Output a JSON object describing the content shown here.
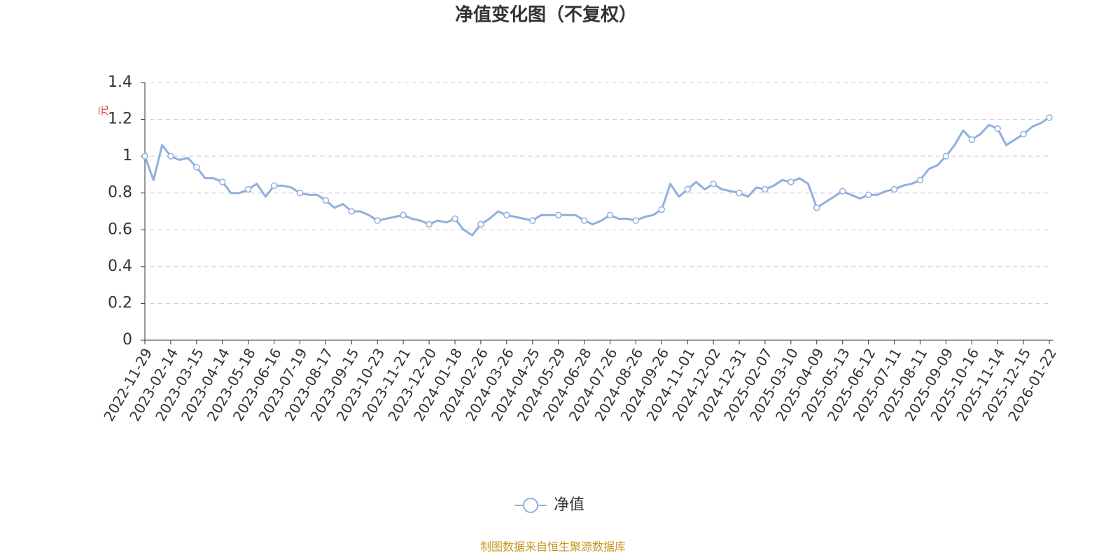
{
  "chart_data": {
    "type": "line",
    "title": "净值变化图（不复权）",
    "y_label": "元",
    "categories": [
      "2022-11-29",
      null,
      null,
      "2023-02-14",
      null,
      null,
      "2023-03-15",
      null,
      null,
      "2023-04-14",
      null,
      null,
      "2023-05-18",
      null,
      null,
      "2023-06-16",
      null,
      null,
      "2023-07-19",
      null,
      null,
      "2023-08-17",
      null,
      null,
      "2023-09-15",
      null,
      null,
      "2023-10-23",
      null,
      null,
      "2023-11-21",
      null,
      null,
      "2023-12-20",
      null,
      null,
      "2024-01-18",
      null,
      null,
      "2024-02-26",
      null,
      null,
      "2024-03-26",
      null,
      null,
      "2024-04-25",
      null,
      null,
      "2024-05-29",
      null,
      null,
      "2024-06-28",
      null,
      null,
      "2024-07-26",
      null,
      null,
      "2024-08-26",
      null,
      null,
      "2024-09-26",
      null,
      null,
      "2024-11-01",
      null,
      null,
      "2024-12-02",
      null,
      null,
      "2024-12-31",
      null,
      null,
      "2025-02-07",
      null,
      null,
      "2025-03-10",
      null,
      null,
      "2025-04-09",
      null,
      null,
      "2025-05-13",
      null,
      null,
      "2025-06-12",
      null,
      null,
      "2025-07-11",
      null,
      null,
      "2025-08-11",
      null,
      null,
      "2025-09-09",
      null,
      null,
      "2025-10-16",
      null,
      null,
      "2025-11-14",
      null,
      null,
      "2025-12-15",
      null,
      null,
      "2026-01-22"
    ],
    "series": [
      {
        "name": "净值",
        "color": "#8fb0dc",
        "values": [
          1.0,
          0.87,
          1.06,
          1.0,
          0.98,
          0.99,
          0.94,
          0.88,
          0.88,
          0.86,
          0.8,
          0.8,
          0.82,
          0.85,
          0.78,
          0.84,
          0.84,
          0.83,
          0.8,
          0.79,
          0.79,
          0.76,
          0.72,
          0.74,
          0.7,
          0.7,
          0.68,
          0.65,
          0.66,
          0.67,
          0.68,
          0.66,
          0.65,
          0.63,
          0.65,
          0.64,
          0.66,
          0.6,
          0.57,
          0.63,
          0.66,
          0.7,
          0.68,
          0.67,
          0.66,
          0.65,
          0.68,
          0.68,
          0.68,
          0.68,
          0.68,
          0.65,
          0.63,
          0.65,
          0.68,
          0.66,
          0.66,
          0.65,
          0.67,
          0.68,
          0.71,
          0.85,
          0.78,
          0.82,
          0.86,
          0.82,
          0.85,
          0.82,
          0.81,
          0.8,
          0.78,
          0.83,
          0.82,
          0.84,
          0.87,
          0.86,
          0.88,
          0.85,
          0.72,
          0.75,
          0.78,
          0.81,
          0.79,
          0.77,
          0.79,
          0.79,
          0.81,
          0.82,
          0.84,
          0.85,
          0.87,
          0.93,
          0.95,
          1.0,
          1.06,
          1.14,
          1.09,
          1.12,
          1.17,
          1.15,
          1.06,
          1.09,
          1.12,
          1.16,
          1.18,
          1.21
        ]
      }
    ],
    "ylim": [
      0,
      1.4
    ],
    "yticks": [
      0,
      0.2,
      0.4,
      0.6,
      0.8,
      1,
      1.2,
      1.4
    ],
    "grid": true,
    "legend": "bottom",
    "source": "制图数据来自恒生聚源数据库"
  }
}
